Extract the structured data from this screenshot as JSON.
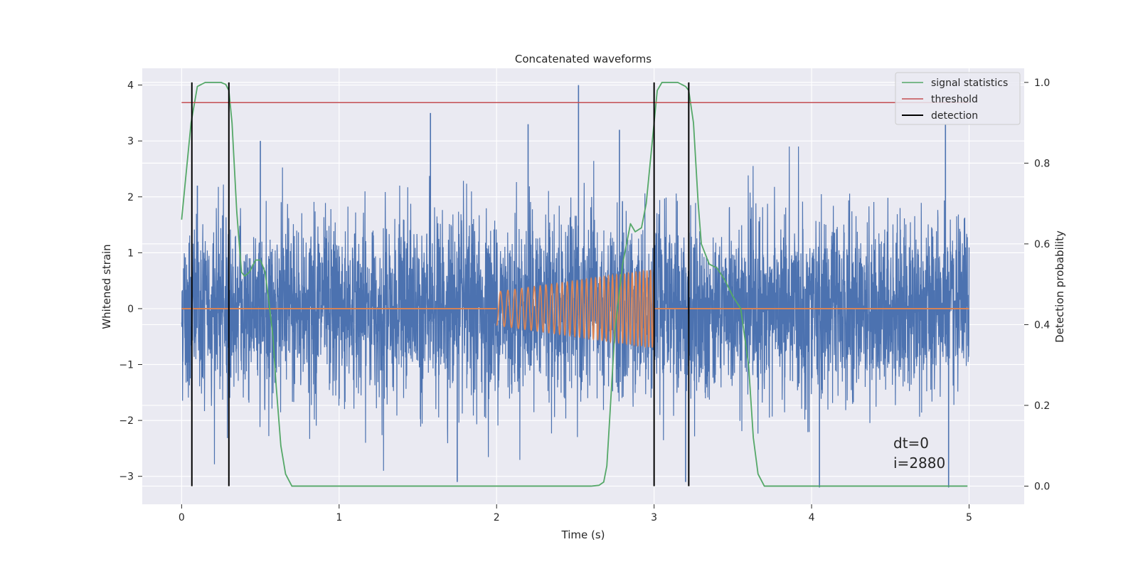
{
  "chart_data": {
    "type": "line",
    "title": "Concatenated waveforms",
    "xlabel": "Time (s)",
    "ylabel": "Whitened strain",
    "y2label": "Detection probability",
    "xlim": [
      -0.25,
      5.35
    ],
    "ylim": [
      -3.5,
      4.3
    ],
    "y2lim": [
      -0.045,
      1.035
    ],
    "xticks": [
      0,
      1,
      2,
      3,
      4,
      5
    ],
    "yticks": [
      -3,
      -2,
      -1,
      0,
      1,
      2,
      3,
      4
    ],
    "y2ticks": [
      0.0,
      0.2,
      0.4,
      0.6,
      0.8,
      1.0
    ],
    "x_tick_labels": [
      "0",
      "1",
      "2",
      "3",
      "4",
      "5"
    ],
    "y_tick_labels": [
      "−3",
      "−2",
      "−1",
      "0",
      "1",
      "2",
      "3",
      "4"
    ],
    "y2_tick_labels": [
      "0.0",
      "0.2",
      "0.4",
      "0.6",
      "0.8",
      "1.0"
    ],
    "grid": true,
    "legend_position": "top-right",
    "series": [
      {
        "name": "",
        "axis": "left",
        "kind": "noise",
        "color": "#4c72b0",
        "x_range": [
          0,
          5
        ],
        "std": 0.8,
        "spikes": [
          [
            0.1,
            2.2
          ],
          [
            0.5,
            3.0
          ],
          [
            1.58,
            3.5
          ],
          [
            1.75,
            -3.1
          ],
          [
            2.2,
            3.3
          ],
          [
            2.52,
            4.0
          ],
          [
            2.78,
            3.2
          ],
          [
            3.2,
            -3.1
          ],
          [
            4.05,
            -3.2
          ],
          [
            4.85,
            3.3
          ],
          [
            4.87,
            -3.2
          ]
        ]
      },
      {
        "name": "",
        "axis": "left",
        "kind": "chirp",
        "color": "#dd8452",
        "x_range": [
          0,
          5
        ],
        "chirp_x_range": [
          2,
          3
        ],
        "chirp_amplitude": [
          0.3,
          0.7
        ],
        "chirp_frequency": [
          20,
          45
        ]
      },
      {
        "name": "signal statistics",
        "axis": "right",
        "kind": "line",
        "color": "#55a868",
        "x": [
          0,
          0.03,
          0.06,
          0.1,
          0.15,
          0.2,
          0.25,
          0.28,
          0.3,
          0.32,
          0.35,
          0.38,
          0.4,
          0.43,
          0.47,
          0.5,
          0.53,
          0.55,
          0.58,
          0.6,
          0.63,
          0.66,
          0.7,
          0.8,
          1.0,
          1.2,
          1.5,
          1.8,
          2.0,
          2.3,
          2.5,
          2.6,
          2.65,
          2.68,
          2.7,
          2.72,
          2.75,
          2.8,
          2.85,
          2.88,
          2.92,
          2.95,
          3.0,
          3.02,
          3.05,
          3.1,
          3.15,
          3.2,
          3.22,
          3.25,
          3.28,
          3.3,
          3.35,
          3.4,
          3.45,
          3.5,
          3.55,
          3.6,
          3.63,
          3.66,
          3.7,
          3.8,
          4.0,
          4.5,
          4.99
        ],
        "y": [
          0.66,
          0.78,
          0.9,
          0.99,
          1.0,
          1.0,
          1.0,
          0.995,
          0.98,
          0.9,
          0.68,
          0.53,
          0.52,
          0.53,
          0.56,
          0.56,
          0.53,
          0.47,
          0.37,
          0.25,
          0.1,
          0.03,
          0.0,
          0.0,
          0.0,
          0.0,
          0.0,
          0.0,
          0.0,
          0.0,
          0.0,
          0.0,
          0.002,
          0.01,
          0.05,
          0.18,
          0.38,
          0.55,
          0.65,
          0.63,
          0.64,
          0.7,
          0.9,
          0.98,
          1.0,
          1.0,
          1.0,
          0.99,
          0.98,
          0.9,
          0.7,
          0.6,
          0.55,
          0.54,
          0.51,
          0.47,
          0.44,
          0.3,
          0.12,
          0.03,
          0.0,
          0.0,
          0.0,
          0.0,
          0.0
        ]
      },
      {
        "name": "threshold",
        "axis": "right",
        "kind": "hline",
        "color": "#c44e52",
        "value": 0.95,
        "x_range": [
          0,
          5
        ]
      },
      {
        "name": "detection",
        "axis": "right",
        "kind": "vlines",
        "color": "#000000",
        "x": [
          0.065,
          0.3,
          3.0,
          3.22
        ],
        "y_range": [
          0,
          1
        ]
      }
    ],
    "annotations": [
      "dt=0",
      "i=2880"
    ]
  }
}
